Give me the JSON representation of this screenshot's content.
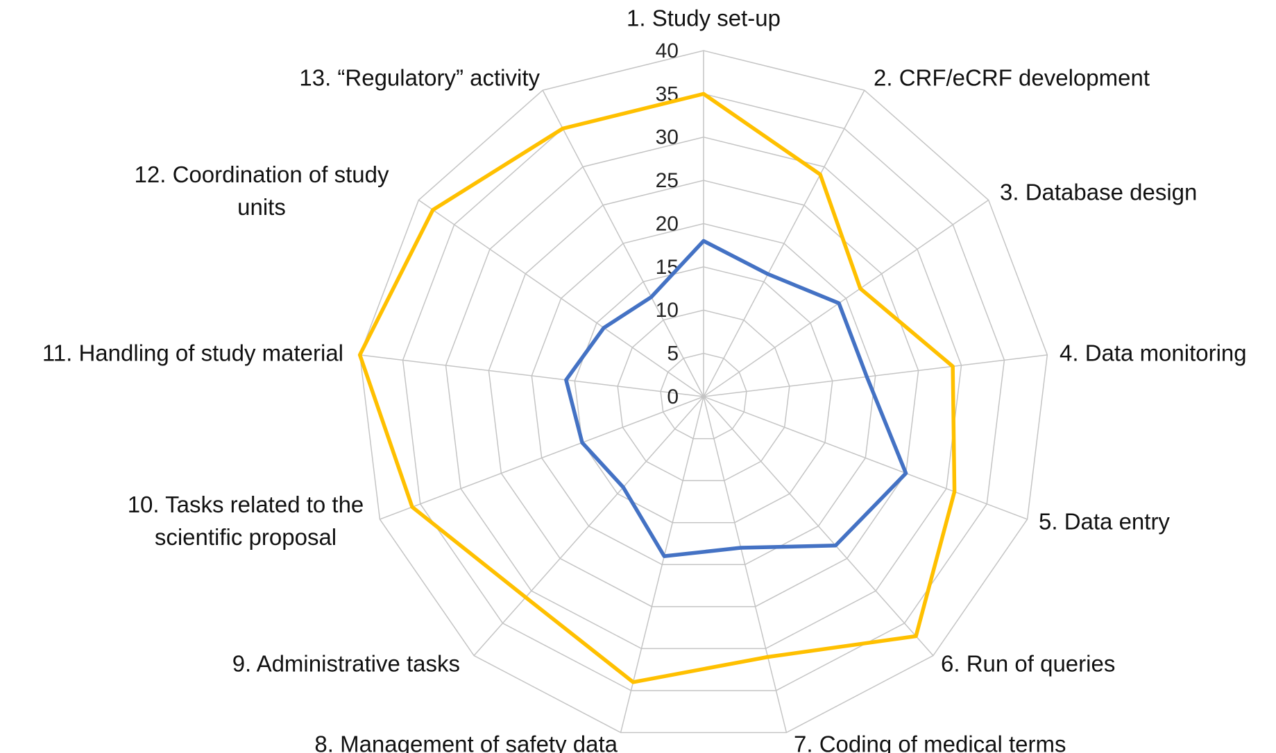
{
  "chart_data": {
    "type": "radar",
    "categories": [
      "1. Study set-up",
      "2. CRF/eCRF development",
      "3. Database design",
      "4. Data monitoring",
      "5. Data entry",
      "6. Run of queries",
      "7.  Coding of medical terms",
      "8.  Management of safety data",
      "9.  Administrative tasks",
      "10. Tasks related to the scientific proposal",
      "11. Handling of study material",
      "12. Coordination of study units",
      "13. “Regulatory” activity"
    ],
    "series": [
      {
        "color": "#FFC000",
        "values": [
          35,
          29,
          22,
          29,
          31,
          37,
          31,
          34,
          31,
          36,
          40,
          38,
          35
        ]
      },
      {
        "color": "#4472C4",
        "values": [
          18,
          16,
          19,
          19,
          25,
          23,
          18,
          19,
          14,
          15,
          16,
          14,
          13
        ]
      }
    ],
    "ylim": [
      0,
      40
    ],
    "yticks": [
      0,
      5,
      10,
      15,
      20,
      25,
      30,
      35,
      40
    ],
    "grid": true
  }
}
